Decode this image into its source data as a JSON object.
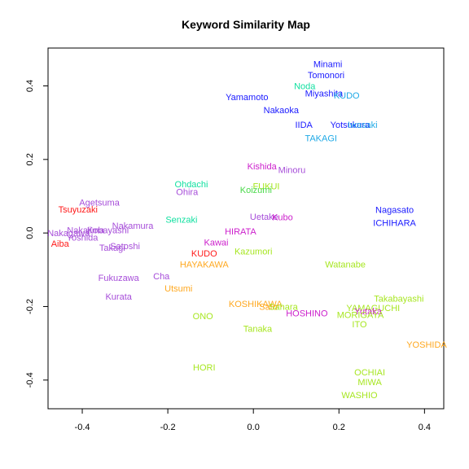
{
  "chart_data": {
    "type": "scatter",
    "title": "Keyword Similarity Map",
    "xlabel": "",
    "ylabel": "",
    "xlim": [
      -0.48,
      0.445
    ],
    "ylim": [
      -0.478,
      0.503
    ],
    "x_ticks": [
      -0.4,
      -0.2,
      0.0,
      0.2,
      0.4
    ],
    "x_tick_labels": [
      "-0.4",
      "-0.2",
      "0.0",
      "0.2",
      "0.4"
    ],
    "y_ticks": [
      -0.4,
      -0.2,
      0.0,
      0.2,
      0.4
    ],
    "y_tick_labels": [
      "-0.4",
      "-0.2",
      "0.0",
      "0.2",
      "0.4"
    ],
    "grid": false,
    "colors": {
      "blue": "#1a1aff",
      "cyan": "#1fa9e6",
      "teal": "#10e0a0",
      "purple": "#a64dd9",
      "magenta": "#cc1fcc",
      "red": "#ff1a1a",
      "orange": "#ffa81f",
      "lime": "#a6e61f",
      "green": "#4ad94a"
    },
    "points": [
      {
        "label": "Minami",
        "x": 0.174,
        "y": 0.46,
        "color": "blue"
      },
      {
        "label": "Tomonori",
        "x": 0.17,
        "y": 0.43,
        "color": "blue"
      },
      {
        "label": "Noda",
        "x": 0.12,
        "y": 0.4,
        "color": "teal"
      },
      {
        "label": "Miyashita",
        "x": 0.165,
        "y": 0.38,
        "color": "blue"
      },
      {
        "label": "KUDO",
        "x": 0.218,
        "y": 0.375,
        "color": "cyan"
      },
      {
        "label": "Yamamoto",
        "x": -0.015,
        "y": 0.37,
        "color": "blue"
      },
      {
        "label": "Nakaoka",
        "x": 0.065,
        "y": 0.335,
        "color": "blue"
      },
      {
        "label": "IIDA",
        "x": 0.118,
        "y": 0.295,
        "color": "blue"
      },
      {
        "label": "Yotsukura",
        "x": 0.226,
        "y": 0.295,
        "color": "blue"
      },
      {
        "label": "Iwasaki",
        "x": 0.255,
        "y": 0.295,
        "color": "cyan"
      },
      {
        "label": "TAKAGI",
        "x": 0.158,
        "y": 0.258,
        "color": "cyan"
      },
      {
        "label": "Kishida",
        "x": 0.02,
        "y": 0.182,
        "color": "magenta"
      },
      {
        "label": "Minoru",
        "x": 0.09,
        "y": 0.172,
        "color": "purple"
      },
      {
        "label": "Ohdachi",
        "x": -0.145,
        "y": 0.133,
        "color": "teal"
      },
      {
        "label": "FUKUI",
        "x": 0.03,
        "y": 0.128,
        "color": "lime"
      },
      {
        "label": "Koizumi",
        "x": 0.006,
        "y": 0.118,
        "color": "green"
      },
      {
        "label": "Ohira",
        "x": -0.155,
        "y": 0.112,
        "color": "purple"
      },
      {
        "label": "Agetsuma",
        "x": -0.36,
        "y": 0.083,
        "color": "purple"
      },
      {
        "label": "Nagasato",
        "x": 0.33,
        "y": 0.063,
        "color": "blue"
      },
      {
        "label": "Tsuyuzaki",
        "x": -0.41,
        "y": 0.065,
        "color": "red"
      },
      {
        "label": "Uetake",
        "x": 0.025,
        "y": 0.045,
        "color": "purple"
      },
      {
        "label": "Kubo",
        "x": 0.068,
        "y": 0.043,
        "color": "magenta"
      },
      {
        "label": "Senzaki",
        "x": -0.168,
        "y": 0.037,
        "color": "teal"
      },
      {
        "label": "ICHIHARA",
        "x": 0.33,
        "y": 0.028,
        "color": "blue"
      },
      {
        "label": "Nakamura",
        "x": -0.282,
        "y": 0.02,
        "color": "purple"
      },
      {
        "label": "Nakajima",
        "x": -0.392,
        "y": 0.008,
        "color": "purple"
      },
      {
        "label": "Kobayashi",
        "x": -0.34,
        "y": 0.008,
        "color": "purple"
      },
      {
        "label": "Nakagawa",
        "x": -0.432,
        "y": 0.0,
        "color": "purple"
      },
      {
        "label": "HIRATA",
        "x": -0.03,
        "y": 0.005,
        "color": "magenta"
      },
      {
        "label": "Yoshida",
        "x": -0.4,
        "y": -0.012,
        "color": "purple"
      },
      {
        "label": "Aiba",
        "x": -0.452,
        "y": -0.028,
        "color": "red"
      },
      {
        "label": "Kawai",
        "x": -0.087,
        "y": -0.025,
        "color": "magenta"
      },
      {
        "label": "Satoshi",
        "x": -0.3,
        "y": -0.035,
        "color": "purple"
      },
      {
        "label": "Takagi",
        "x": -0.33,
        "y": -0.04,
        "color": "purple"
      },
      {
        "label": "Kazumori",
        "x": 0.0,
        "y": -0.05,
        "color": "lime"
      },
      {
        "label": "KUDO",
        "x": -0.115,
        "y": -0.055,
        "color": "red"
      },
      {
        "label": "HAYAKAWA",
        "x": -0.115,
        "y": -0.085,
        "color": "orange"
      },
      {
        "label": "Watanabe",
        "x": 0.215,
        "y": -0.085,
        "color": "lime"
      },
      {
        "label": "Fukuzawa",
        "x": -0.315,
        "y": -0.122,
        "color": "purple"
      },
      {
        "label": "Cha",
        "x": -0.215,
        "y": -0.117,
        "color": "purple"
      },
      {
        "label": "Utsumi",
        "x": -0.175,
        "y": -0.15,
        "color": "orange"
      },
      {
        "label": "Kurata",
        "x": -0.315,
        "y": -0.172,
        "color": "purple"
      },
      {
        "label": "Takabayashi",
        "x": 0.34,
        "y": -0.178,
        "color": "lime"
      },
      {
        "label": "KOSHIKAWA",
        "x": 0.005,
        "y": -0.192,
        "color": "orange"
      },
      {
        "label": "Sato",
        "x": 0.035,
        "y": -0.2,
        "color": "orange"
      },
      {
        "label": "Sahara",
        "x": 0.07,
        "y": -0.2,
        "color": "lime"
      },
      {
        "label": "YAMAGUCHI",
        "x": 0.28,
        "y": -0.203,
        "color": "lime"
      },
      {
        "label": "HOSHINO",
        "x": 0.125,
        "y": -0.218,
        "color": "magenta"
      },
      {
        "label": "Yutaka",
        "x": 0.268,
        "y": -0.212,
        "color": "magenta"
      },
      {
        "label": "MORIGAYA",
        "x": 0.25,
        "y": -0.222,
        "color": "lime"
      },
      {
        "label": "ONO",
        "x": -0.118,
        "y": -0.225,
        "color": "lime"
      },
      {
        "label": "ITO",
        "x": 0.248,
        "y": -0.248,
        "color": "lime"
      },
      {
        "label": "Tanaka",
        "x": 0.01,
        "y": -0.26,
        "color": "lime"
      },
      {
        "label": "YOSHIDA",
        "x": 0.405,
        "y": -0.303,
        "color": "orange"
      },
      {
        "label": "HORI",
        "x": -0.115,
        "y": -0.365,
        "color": "lime"
      },
      {
        "label": "OCHIAI",
        "x": 0.272,
        "y": -0.378,
        "color": "lime"
      },
      {
        "label": "MIWA",
        "x": 0.272,
        "y": -0.405,
        "color": "lime"
      },
      {
        "label": "WASHIO",
        "x": 0.248,
        "y": -0.44,
        "color": "lime"
      }
    ]
  }
}
